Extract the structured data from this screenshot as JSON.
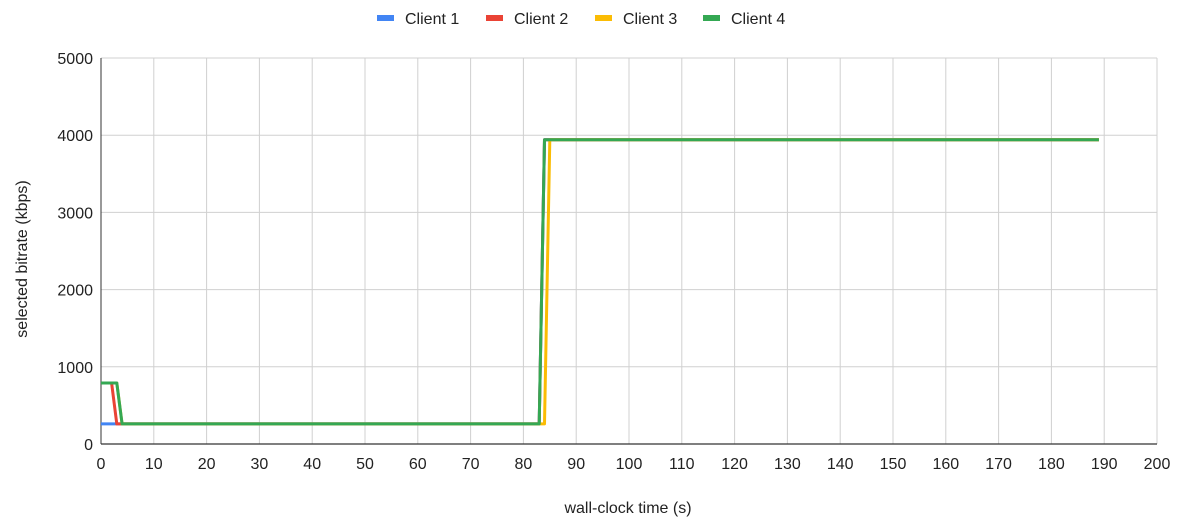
{
  "chart_data": {
    "type": "line",
    "title": "",
    "xlabel": "wall-clock time (s)",
    "ylabel": "selected bitrate (kbps)",
    "xlim": [
      0,
      200
    ],
    "ylim": [
      0,
      5000
    ],
    "x_ticks": [
      0,
      10,
      20,
      30,
      40,
      50,
      60,
      70,
      80,
      90,
      100,
      110,
      120,
      130,
      140,
      150,
      160,
      170,
      180,
      190,
      200
    ],
    "y_ticks": [
      0,
      1000,
      2000,
      3000,
      4000,
      5000
    ],
    "grid": true,
    "legend_position": "top-center",
    "series": [
      {
        "name": "Client 1",
        "color": "#4285F4",
        "points": [
          [
            0,
            260
          ],
          [
            3,
            260
          ],
          [
            4,
            260
          ],
          [
            83,
            260
          ],
          [
            84,
            3940
          ],
          [
            189,
            3940
          ]
        ]
      },
      {
        "name": "Client 2",
        "color": "#EA4335",
        "points": [
          [
            0,
            790
          ],
          [
            2,
            790
          ],
          [
            3,
            260
          ],
          [
            83,
            260
          ],
          [
            84,
            3940
          ],
          [
            189,
            3940
          ]
        ]
      },
      {
        "name": "Client 3",
        "color": "#FBBC04",
        "points": [
          [
            0,
            790
          ],
          [
            3,
            790
          ],
          [
            4,
            260
          ],
          [
            84,
            260
          ],
          [
            85,
            3940
          ],
          [
            189,
            3940
          ]
        ]
      },
      {
        "name": "Client 4",
        "color": "#34A853",
        "points": [
          [
            0,
            790
          ],
          [
            3,
            790
          ],
          [
            4,
            260
          ],
          [
            83,
            260
          ],
          [
            84,
            3940
          ],
          [
            189,
            3940
          ]
        ]
      }
    ]
  }
}
